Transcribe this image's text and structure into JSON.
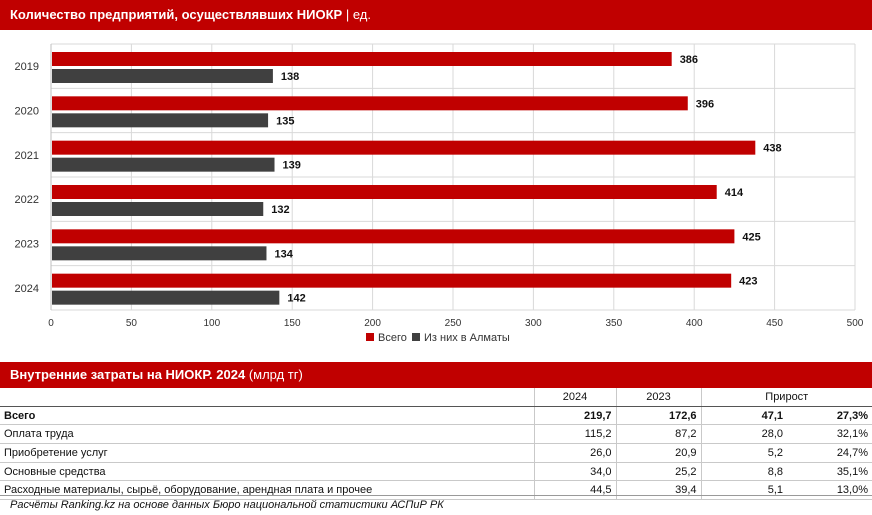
{
  "chart_data": {
    "type": "bar",
    "orientation": "horizontal",
    "title": "Количество предприятий, осуществлявших НИОКР",
    "title_unit": "| ед.",
    "categories": [
      "2019",
      "2020",
      "2021",
      "2022",
      "2023",
      "2024"
    ],
    "series": [
      {
        "name": "Всего",
        "color": "#c00000",
        "values": [
          386,
          396,
          438,
          414,
          425,
          423
        ]
      },
      {
        "name": "Из них в Алматы",
        "color": "#404040",
        "values": [
          138,
          135,
          139,
          132,
          134,
          142
        ]
      }
    ],
    "xlim": [
      0,
      500
    ],
    "xticks": [
      0,
      50,
      100,
      150,
      200,
      250,
      300,
      350,
      400,
      450,
      500
    ],
    "grid": true,
    "legend_position": "bottom"
  },
  "table": {
    "title": "Внутренние затраты на НИОКР. 2024",
    "unit": "(млрд тг)",
    "headers": [
      "2024",
      "2023",
      "Прирост"
    ],
    "rows": [
      {
        "label": "Всего",
        "v2024": "219,7",
        "v2023": "172,6",
        "abs": "47,1",
        "pct": "27,3%"
      },
      {
        "label": "Оплата труда",
        "v2024": "115,2",
        "v2023": "87,2",
        "abs": "28,0",
        "pct": "32,1%"
      },
      {
        "label": "Приобретение услуг",
        "v2024": "26,0",
        "v2023": "20,9",
        "abs": "5,2",
        "pct": "24,7%"
      },
      {
        "label": "Основные средства",
        "v2024": "34,0",
        "v2023": "25,2",
        "abs": "8,8",
        "pct": "35,1%"
      },
      {
        "label": "Расходные материалы, сырьё, оборудование, арендная плата и прочее",
        "v2024": "44,5",
        "v2023": "39,4",
        "abs": "5,1",
        "pct": "13,0%"
      }
    ]
  },
  "footer": "Расчёты Ranking.kz на основе данных Бюро национальной статистики АСПиР РК"
}
